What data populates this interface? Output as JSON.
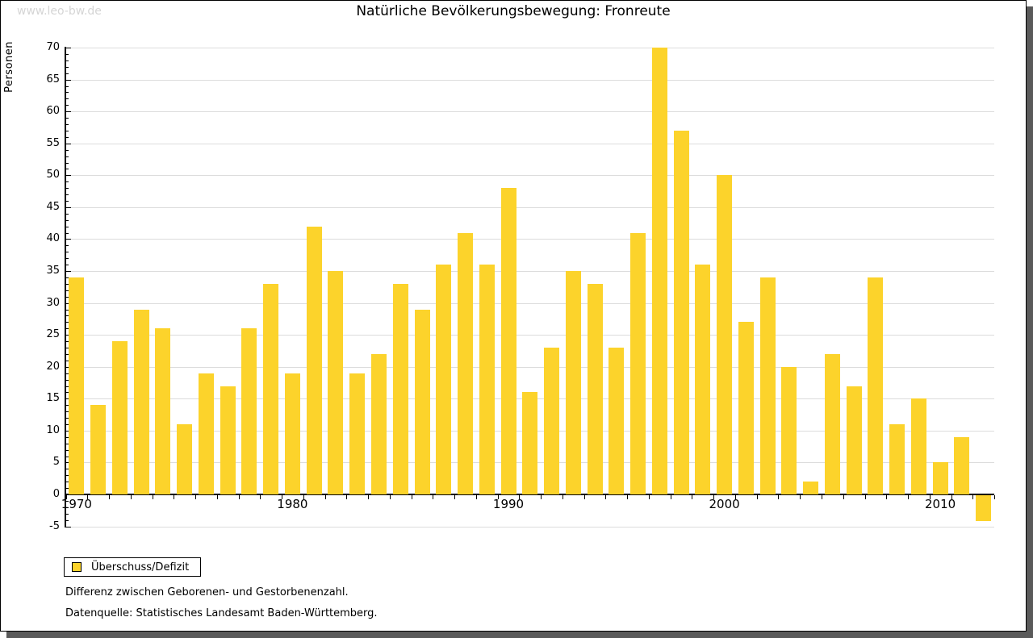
{
  "window": {
    "watermark": "www.leo-bw.de"
  },
  "chart_data": {
    "type": "bar",
    "title": "Natürliche Bevölkerungsbewegung: Fronreute",
    "xlabel": "",
    "ylabel": "Personen",
    "ylim": [
      -5,
      70
    ],
    "ytick_step": 5,
    "ytick_labels": [
      "-5",
      "0",
      "5",
      "10",
      "15",
      "20",
      "25",
      "30",
      "35",
      "40",
      "45",
      "50",
      "55",
      "60",
      "65",
      "70"
    ],
    "xtick_labels": [
      "1970",
      "1980",
      "1990",
      "2000",
      "2010"
    ],
    "grid": true,
    "legend_position": "bottom-left",
    "bar_color": "#fcd32b",
    "series_name": "Überschuss/Defizit",
    "x": [
      1970,
      1971,
      1972,
      1973,
      1974,
      1975,
      1976,
      1977,
      1978,
      1979,
      1980,
      1981,
      1982,
      1983,
      1984,
      1985,
      1986,
      1987,
      1988,
      1989,
      1990,
      1991,
      1992,
      1993,
      1994,
      1995,
      1996,
      1997,
      1998,
      1999,
      2000,
      2001,
      2002,
      2003,
      2004,
      2005,
      2006,
      2007,
      2008,
      2009,
      2010,
      2011,
      2012
    ],
    "values": [
      34,
      14,
      24,
      29,
      26,
      11,
      19,
      17,
      26,
      33,
      19,
      42,
      35,
      19,
      22,
      33,
      29,
      36,
      41,
      36,
      48,
      16,
      23,
      35,
      33,
      23,
      41,
      70,
      57,
      36,
      50,
      27,
      34,
      20,
      2,
      22,
      17,
      34,
      11,
      15,
      5,
      9,
      -4
    ]
  },
  "legend": {
    "label": "Überschuss/Defizit"
  },
  "footnotes": {
    "line1": "Differenz zwischen Geborenen- und Gestorbenenzahl.",
    "line2": "Datenquelle: Statistisches Landesamt Baden-Württemberg."
  }
}
